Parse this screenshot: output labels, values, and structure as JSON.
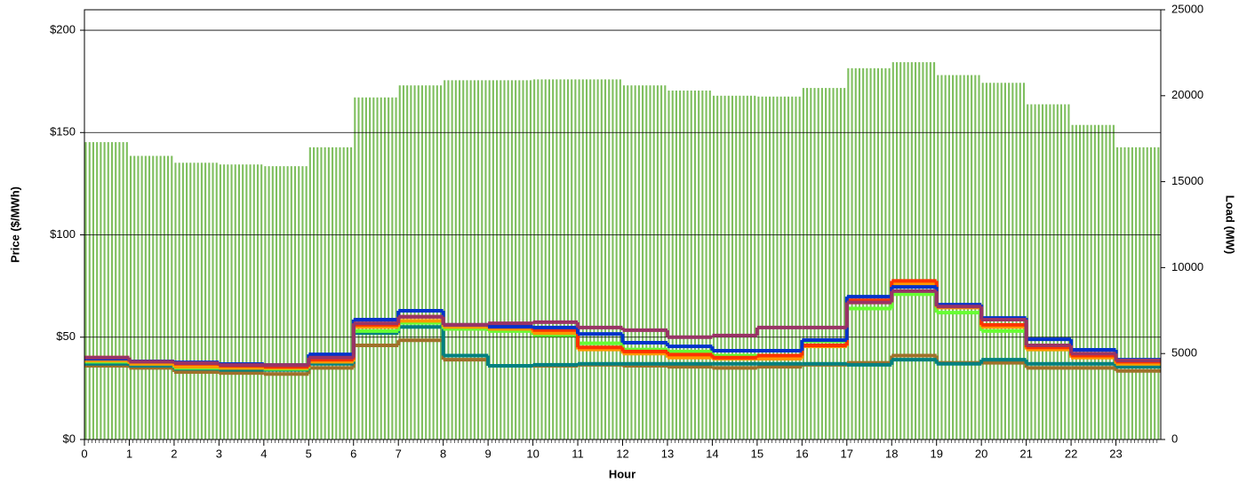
{
  "chart_data": {
    "type": "step-line-bar",
    "y_label": "Price ($/MWh)",
    "y2_label": "Load (MW)",
    "x_label": "Hour",
    "xlim": [
      0,
      24
    ],
    "xticks": [
      0,
      1,
      2,
      3,
      4,
      5,
      6,
      7,
      8,
      9,
      10,
      11,
      12,
      13,
      14,
      15,
      16,
      17,
      18,
      19,
      20,
      21,
      22,
      23
    ],
    "ylim": [
      0,
      210
    ],
    "yticks": [
      {
        "value": 0,
        "label": "$0"
      },
      {
        "value": 50,
        "label": "$50"
      },
      {
        "value": 100,
        "label": "$100"
      },
      {
        "value": 150,
        "label": "$150"
      },
      {
        "value": 200,
        "label": "$200"
      }
    ],
    "y2lim": [
      0,
      25000
    ],
    "y2ticks": [
      0,
      5000,
      10000,
      15000,
      20000,
      25000
    ],
    "grid": true,
    "load": {
      "axis": "y2",
      "color": "#7fbf5f",
      "values": [
        17300,
        16500,
        16100,
        16000,
        15900,
        17000,
        19900,
        20600,
        20900,
        20900,
        20950,
        20950,
        20600,
        20300,
        20000,
        19950,
        20450,
        21600,
        21950,
        21200,
        20750,
        19500,
        18300,
        17000
      ]
    },
    "series": [
      {
        "color": "#a0702a",
        "values": [
          36,
          35,
          33,
          32.5,
          32,
          35,
          46,
          48.5,
          39,
          36,
          36,
          36.5,
          36,
          35.5,
          35,
          35.5,
          36.5,
          37.5,
          41,
          37.5,
          37.5,
          35,
          35,
          33.5
        ]
      },
      {
        "color": "#008080",
        "values": [
          37,
          36,
          34.5,
          34,
          34,
          37,
          52,
          55,
          41,
          36,
          36.5,
          37,
          37,
          37,
          37,
          37,
          37,
          36.5,
          39,
          37,
          39,
          37,
          37,
          35.5
        ]
      },
      {
        "color": "#66ff33",
        "values": [
          38,
          37,
          35,
          35,
          34.5,
          38,
          53,
          57,
          54,
          53,
          51,
          47,
          44,
          43,
          41,
          41,
          48,
          64,
          71,
          62,
          53,
          44,
          41,
          37
        ]
      },
      {
        "color": "#ff9900",
        "values": [
          38.5,
          37,
          35.5,
          35,
          35,
          38,
          55,
          58,
          55,
          54,
          52,
          44,
          42,
          40,
          39.5,
          39.5,
          45.5,
          67,
          76,
          64.5,
          55,
          44,
          40,
          37
        ]
      },
      {
        "color": "#ff3300",
        "values": [
          40,
          38,
          37,
          36,
          35.5,
          39,
          56,
          60,
          56,
          55,
          53.5,
          45,
          43,
          41.5,
          40,
          41,
          46,
          68,
          77.5,
          65.5,
          56,
          45,
          41,
          38
        ]
      },
      {
        "color": "#0033cc",
        "values": [
          39.5,
          38.2,
          37.7,
          36.9,
          36.4,
          41.6,
          58.6,
          62.9,
          56,
          55.1,
          54.7,
          51.6,
          47.3,
          45.5,
          43.4,
          43.4,
          48.6,
          69.8,
          74.6,
          65.9,
          59.4,
          49,
          43.8,
          39
        ]
      },
      {
        "color": "#993366",
        "values": [
          40,
          38,
          37.3,
          36.4,
          36.4,
          40,
          56.8,
          60,
          56,
          56.8,
          57.3,
          54.7,
          53.4,
          50,
          50.8,
          54.7,
          54.7,
          67,
          72.5,
          65,
          58.6,
          46,
          42,
          38.6
        ]
      }
    ]
  }
}
